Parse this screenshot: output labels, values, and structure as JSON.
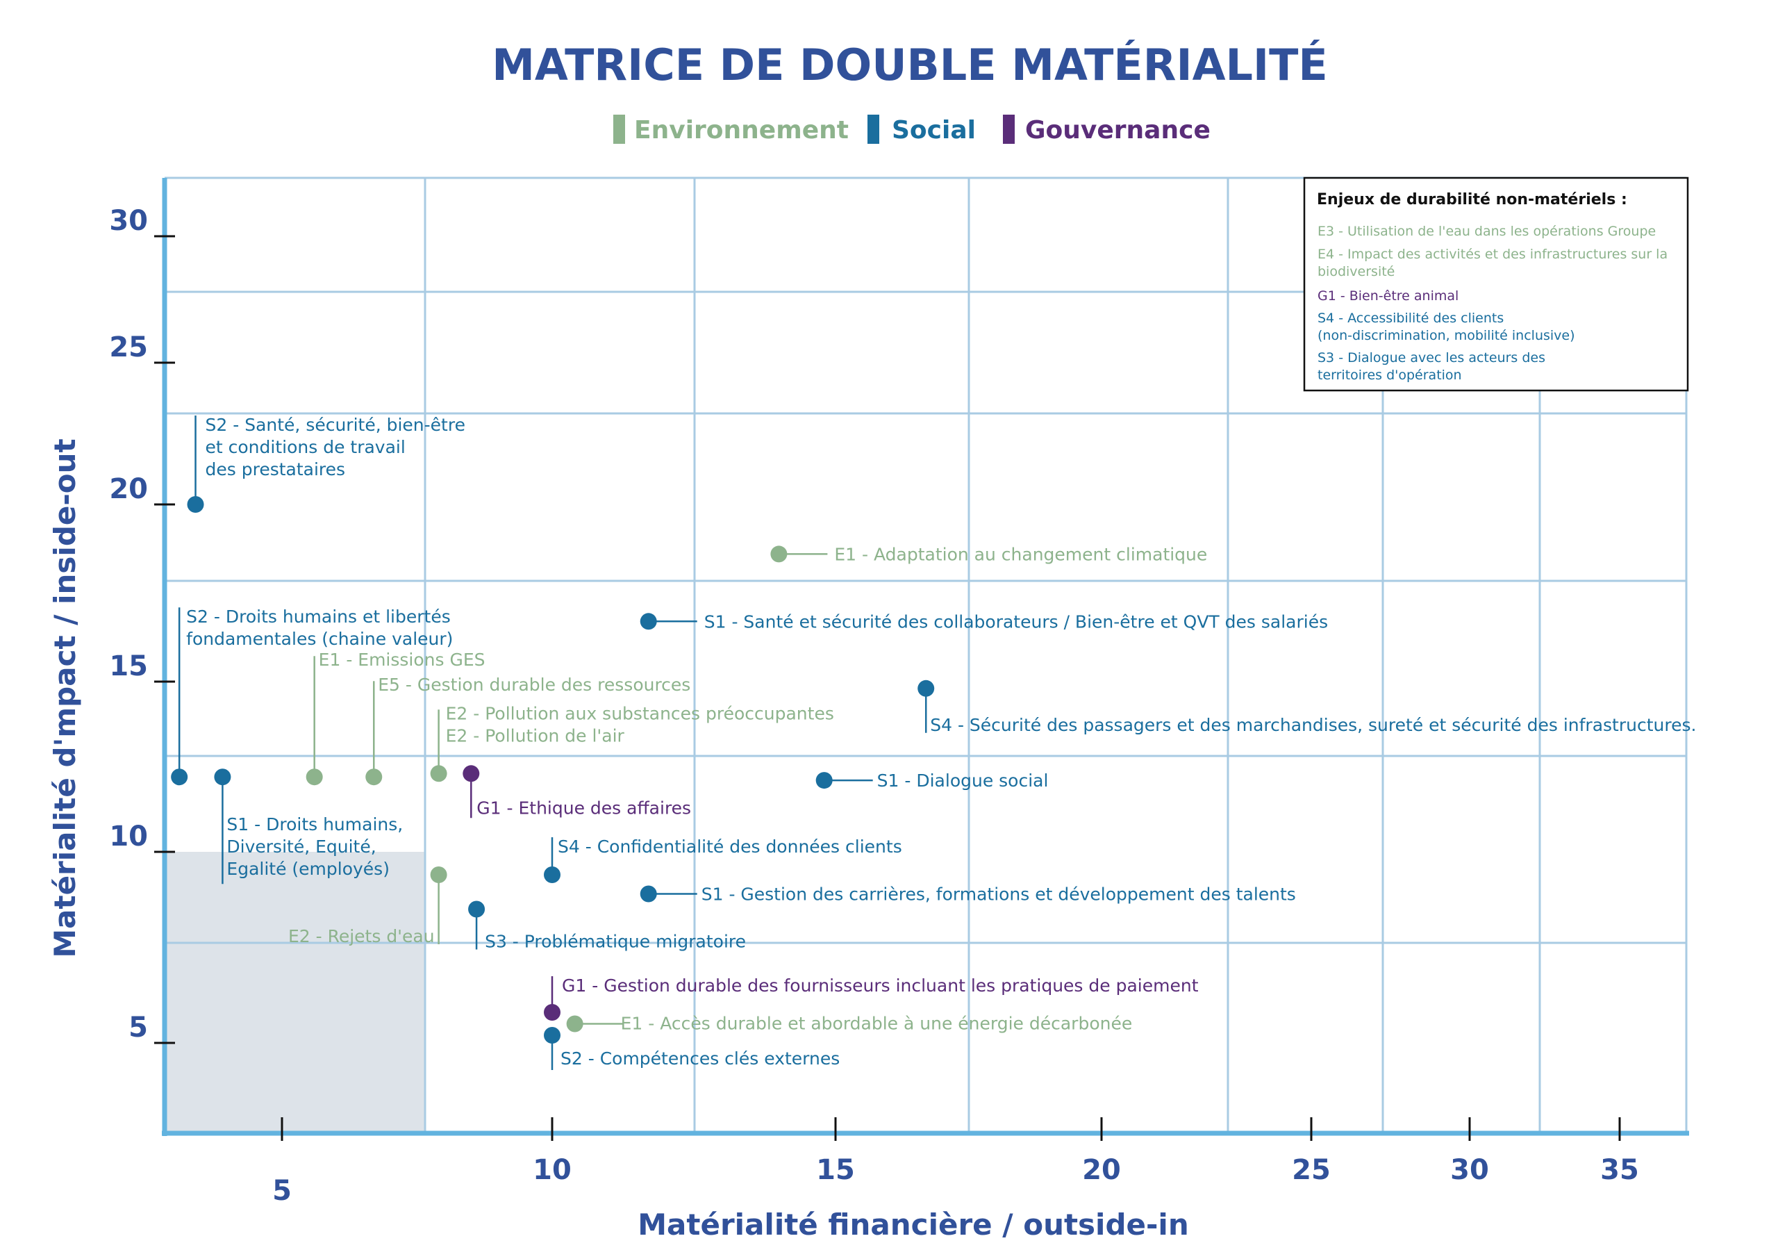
{
  "colors": {
    "environnement": "#8db38c",
    "social": "#1a6e9e",
    "gouvernance": "#5a2d79",
    "title": "#31519a",
    "grid": "#a9cbe3",
    "axis": "#62b3df",
    "zone": "#dde3e9"
  },
  "chart_data": {
    "type": "scatter",
    "title": "MATRICE DE DOUBLE MATÉRIALITÉ",
    "xlabel": "Matérialité financière / outside-in",
    "ylabel": "Matérialité d'mpact / inside-out",
    "x_ticks": [
      "5",
      "10",
      "15",
      "20",
      "25",
      "30",
      "35"
    ],
    "y_ticks": [
      "5",
      "10",
      "15",
      "20",
      "25",
      "30"
    ],
    "grid": true,
    "legend_position": "top-center",
    "legend": [
      {
        "key": "environnement",
        "label": "Environnement"
      },
      {
        "key": "social",
        "label": "Social"
      },
      {
        "key": "gouvernance",
        "label": "Gouvernance"
      }
    ],
    "points": [
      {
        "category": "social",
        "x": 3.4,
        "y": 20.0,
        "label": [
          "S2 - Santé, sécurité, bien-être",
          "et conditions de travail",
          "des prestataires"
        ]
      },
      {
        "category": "environnement",
        "x": 14.0,
        "y": 18.6,
        "label": [
          "E1 - Adaptation au changement climatique"
        ]
      },
      {
        "category": "social",
        "x": 11.7,
        "y": 16.7,
        "label": [
          "S1 - Santé et sécurité des collaborateurs / Bien-être et QVT des salariés"
        ]
      },
      {
        "category": "social",
        "x": 16.7,
        "y": 14.8,
        "label": [
          "S4 - Sécurité des passagers et des marchandises, sureté et sécurité des infrastructures."
        ]
      },
      {
        "category": "social",
        "x": 3.1,
        "y": 12.2,
        "label": [
          "S2 - Droits humains et libertés",
          "fondamentales (chaine valeur)"
        ]
      },
      {
        "category": "social",
        "x": 3.9,
        "y": 12.2,
        "label": [
          "S1 - Droits humains,",
          "Diversité, Equité,",
          "Egalité (employés)"
        ]
      },
      {
        "category": "environnement",
        "x": 5.6,
        "y": 12.2,
        "label": [
          "E1 - Emissions GES"
        ]
      },
      {
        "category": "environnement",
        "x": 6.7,
        "y": 12.2,
        "label": [
          "E5 - Gestion durable des ressources"
        ]
      },
      {
        "category": "environnement",
        "x": 7.9,
        "y": 12.3,
        "label": [
          "E2 - Pollution aux substances préoccupantes",
          "E2 - Pollution de l'air"
        ]
      },
      {
        "category": "gouvernance",
        "x": 8.5,
        "y": 12.3,
        "label": [
          "G1 - Ethique des affaires"
        ]
      },
      {
        "category": "social",
        "x": 14.8,
        "y": 12.1,
        "label": [
          "S1 - Dialogue social"
        ]
      },
      {
        "category": "social",
        "x": 10.0,
        "y": 9.4,
        "label": [
          "S4 - Confidentialité des données clients"
        ]
      },
      {
        "category": "environnement",
        "x": 7.9,
        "y": 9.4,
        "label": [
          "E2 - Rejets d'eau"
        ]
      },
      {
        "category": "social",
        "x": 11.7,
        "y": 8.9,
        "label": [
          "S1 - Gestion des carrières, formations et développement des talents"
        ]
      },
      {
        "category": "social",
        "x": 8.6,
        "y": 8.5,
        "label": [
          "S3 - Problématique migratoire"
        ]
      },
      {
        "category": "gouvernance",
        "x": 10.0,
        "y": 5.8,
        "label": [
          "G1 - Gestion durable des fournisseurs incluant les pratiques de paiement"
        ]
      },
      {
        "category": "environnement",
        "x": 10.4,
        "y": 5.5,
        "label": [
          "E1 - Accès durable et abordable à une énergie décarbonée"
        ]
      },
      {
        "category": "social",
        "x": 10.0,
        "y": 5.2,
        "label": [
          "S2 - Compétences clés externes"
        ]
      }
    ]
  },
  "non_material_box": {
    "title": "Enjeux de durabilité non-matériels :",
    "items": [
      {
        "category": "environnement",
        "lines": [
          "E3 - Utilisation de l'eau dans les opérations Groupe"
        ]
      },
      {
        "category": "environnement",
        "lines": [
          "E4 - Impact des activités et des infrastructures sur la",
          "biodiversité"
        ]
      },
      {
        "category": "gouvernance",
        "lines": [
          "G1 - Bien-être animal"
        ]
      },
      {
        "category": "social",
        "lines": [
          "S4 - Accessibilité des clients",
          "(non-discrimination, mobilité inclusive)"
        ]
      },
      {
        "category": "social",
        "lines": [
          "S3 - Dialogue avec les acteurs des",
          "territoires d'opération"
        ]
      }
    ]
  }
}
